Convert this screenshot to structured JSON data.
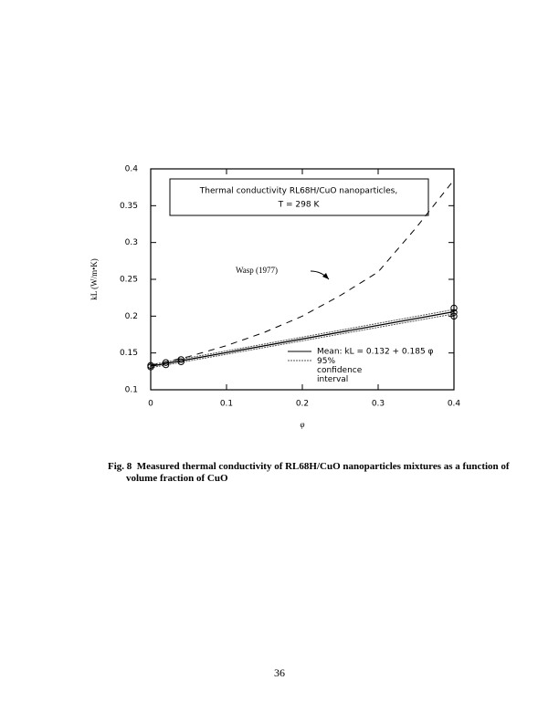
{
  "chart_data": {
    "type": "line",
    "title": "Thermal conductivity RL68H/CuO nanoparticles,",
    "subtitle": "T = 298 K",
    "annotation": "Wasp (1977)",
    "xlabel": "φ",
    "ylabel": "kL (W/m•K)",
    "xlim": [
      0,
      0.4
    ],
    "ylim": [
      0.1,
      0.4
    ],
    "xticks": [
      0,
      0.1,
      0.2,
      0.3,
      0.4
    ],
    "yticks": [
      0.1,
      0.15,
      0.2,
      0.25,
      0.3,
      0.35,
      0.4
    ],
    "series": [
      {
        "name": "Mean: kL = 0.132 + 0.185 φ",
        "color": "#000000",
        "style": "solid",
        "x": [
          0,
          0.4
        ],
        "values": [
          0.132,
          0.206
        ]
      },
      {
        "name": "95% confidence interval",
        "color": "#555555",
        "style": "dotted",
        "x": [
          0,
          0.4
        ],
        "values": [
          0.134,
          0.209
        ]
      },
      {
        "color": "#555555",
        "style": "dotted",
        "x": [
          0,
          0.4
        ],
        "values": [
          0.13,
          0.203
        ]
      },
      {
        "color": "#000000",
        "style": "dashed",
        "x": [
          0,
          0.05,
          0.1,
          0.15,
          0.2,
          0.25,
          0.3,
          0.35,
          0.4
        ],
        "values": [
          0.133,
          0.145,
          0.16,
          0.178,
          0.2,
          0.228,
          0.26,
          0.32,
          0.385
        ]
      },
      {
        "color": "#000000",
        "style": "markers",
        "x": [
          0,
          0,
          0.02,
          0.02,
          0.04,
          0.04,
          0.4,
          0.4,
          0.4
        ],
        "values": [
          0.131,
          0.133,
          0.134,
          0.137,
          0.138,
          0.141,
          0.2,
          0.205,
          0.211
        ]
      }
    ]
  },
  "caption": {
    "label": "Fig. 8",
    "text": "Measured thermal conductivity of RL68H/CuO nanoparticles mixtures as a function of volume fraction of CuO"
  },
  "page_number": "36"
}
